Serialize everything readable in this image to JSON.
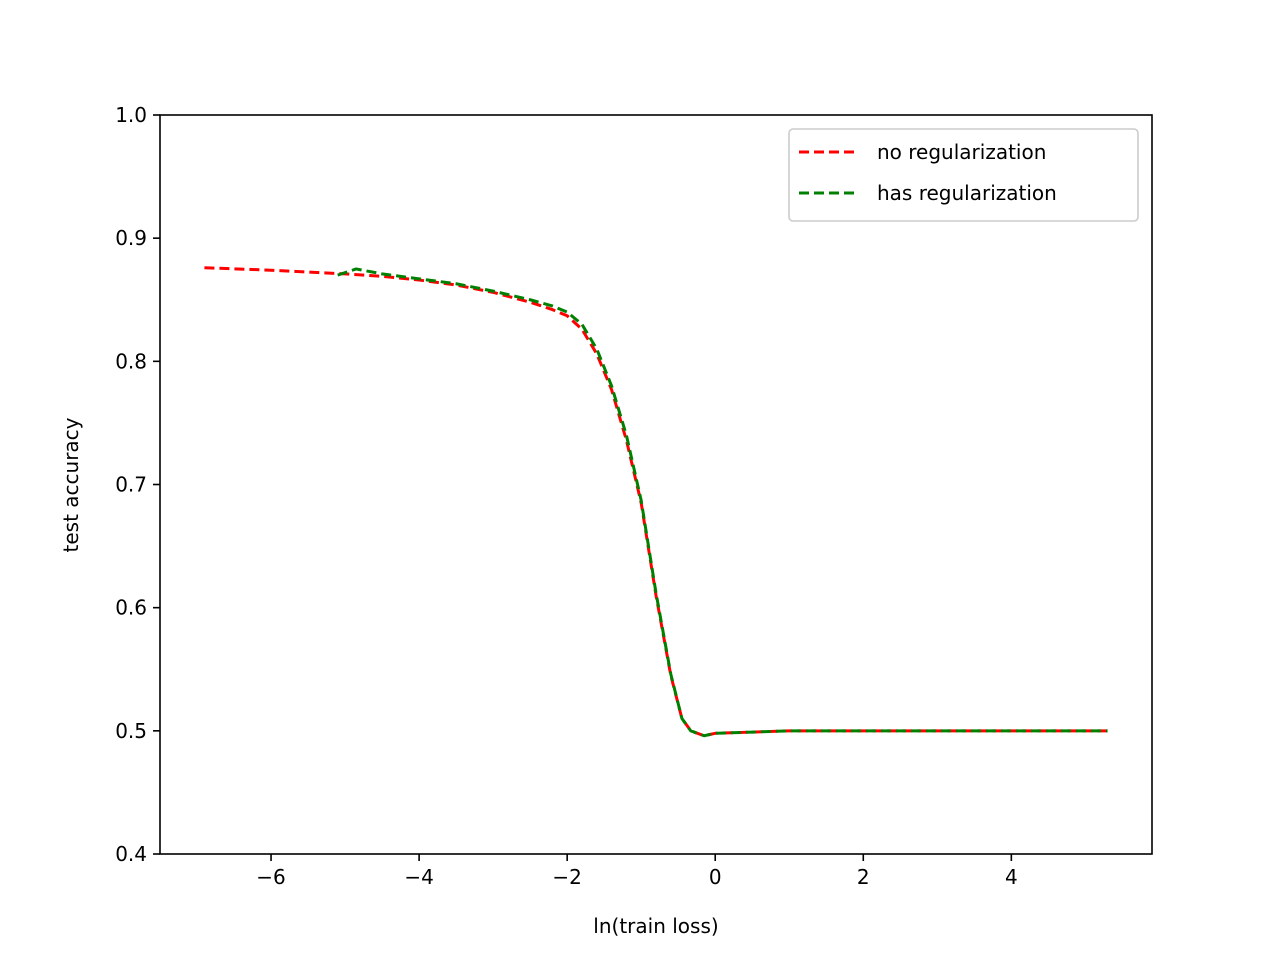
{
  "chart_data": {
    "type": "line",
    "title": "",
    "xlabel": "ln(train loss)",
    "ylabel": "test accuracy",
    "xlim": [
      -7.5,
      5.9
    ],
    "ylim": [
      0.4,
      1.0
    ],
    "xticks": [
      -6,
      -4,
      -2,
      0,
      2,
      4
    ],
    "xtick_labels": [
      "−6",
      "−4",
      "−2",
      "0",
      "2",
      "4"
    ],
    "yticks": [
      0.4,
      0.5,
      0.6,
      0.7,
      0.8,
      0.9,
      1.0
    ],
    "ytick_labels": [
      "0.4",
      "0.5",
      "0.6",
      "0.7",
      "0.8",
      "0.9",
      "1.0"
    ],
    "grid": false,
    "legend_position": "top-right",
    "series": [
      {
        "name": "no regularization",
        "color": "#ff0000",
        "style": "dashed",
        "x": [
          -6.9,
          -6.0,
          -5.0,
          -4.5,
          -4.0,
          -3.5,
          -3.0,
          -2.5,
          -2.2,
          -2.0,
          -1.8,
          -1.6,
          -1.4,
          -1.2,
          -1.0,
          -0.8,
          -0.6,
          -0.45,
          -0.33,
          -0.15,
          0.0,
          0.5,
          1.0,
          2.0,
          3.0,
          4.0,
          5.3
        ],
        "y": [
          0.876,
          0.874,
          0.871,
          0.869,
          0.866,
          0.862,
          0.856,
          0.848,
          0.842,
          0.837,
          0.826,
          0.806,
          0.777,
          0.736,
          0.685,
          0.61,
          0.545,
          0.51,
          0.5,
          0.496,
          0.498,
          0.499,
          0.5,
          0.5,
          0.5,
          0.5,
          0.5
        ]
      },
      {
        "name": "has regularization",
        "color": "#008000",
        "style": "dashed",
        "x": [
          -5.1,
          -4.85,
          -4.5,
          -4.0,
          -3.5,
          -3.0,
          -2.5,
          -2.2,
          -2.0,
          -1.8,
          -1.6,
          -1.4,
          -1.2,
          -1.0,
          -0.8,
          -0.6,
          -0.45,
          -0.33,
          -0.15,
          0.0,
          0.5,
          1.0,
          2.0,
          3.0,
          4.0,
          5.3
        ],
        "y": [
          0.87,
          0.875,
          0.871,
          0.867,
          0.863,
          0.857,
          0.85,
          0.845,
          0.84,
          0.83,
          0.81,
          0.78,
          0.74,
          0.687,
          0.612,
          0.546,
          0.51,
          0.5,
          0.496,
          0.498,
          0.499,
          0.5,
          0.5,
          0.5,
          0.5,
          0.5
        ]
      }
    ]
  }
}
